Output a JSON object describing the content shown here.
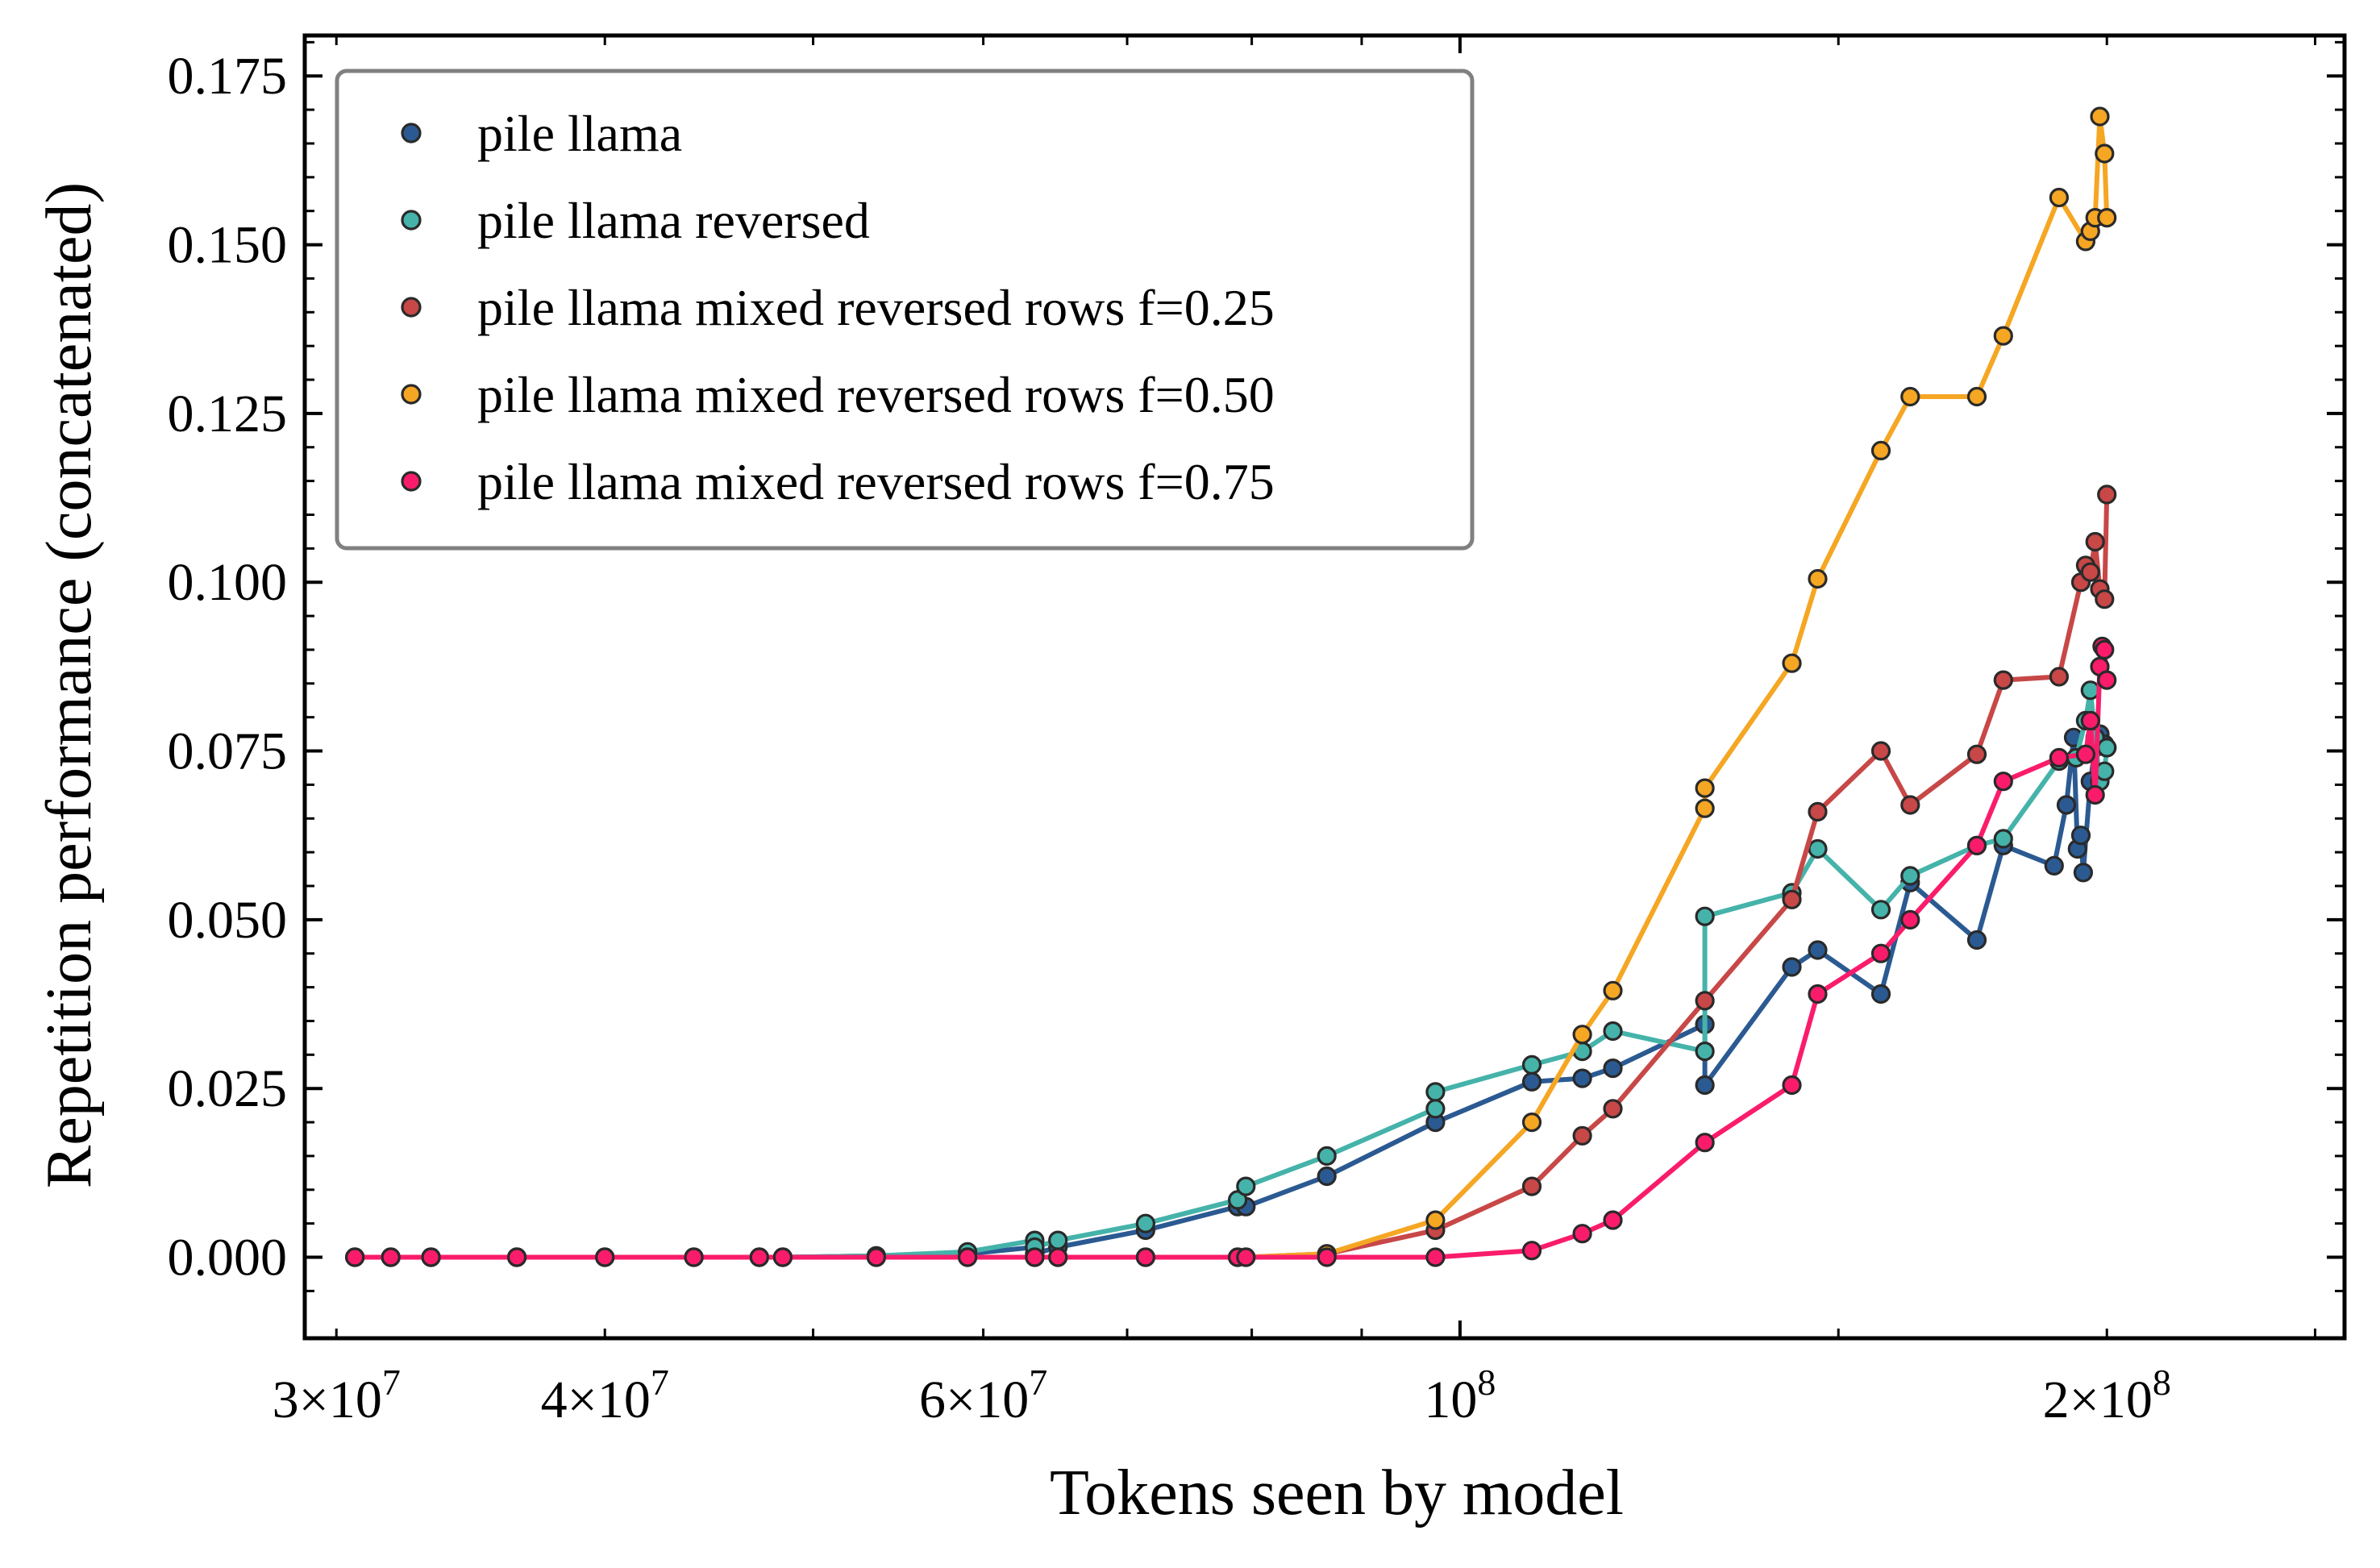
{
  "chart_data": {
    "type": "line",
    "xlabel": "Tokens seen by model",
    "ylabel": "Repetition performance (concatenated)",
    "xscale": "log",
    "xlim": [
      29000000,
      258000000
    ],
    "ylim": [
      -0.012,
      0.181
    ],
    "grid": false,
    "legend_position": "top-left",
    "x_ticks": [
      {
        "value": 30000000,
        "base": "3",
        "exp": "7"
      },
      {
        "value": 40000000,
        "base": "4",
        "exp": "7"
      },
      {
        "value": 60000000,
        "base": "6",
        "exp": "7"
      },
      {
        "value": 100000000,
        "base": "",
        "exp": "8"
      },
      {
        "value": 200000000,
        "base": "2",
        "exp": "8"
      }
    ],
    "y_ticks": [
      {
        "value": 0.0,
        "label": "0.000"
      },
      {
        "value": 0.025,
        "label": "0.025"
      },
      {
        "value": 0.05,
        "label": "0.050"
      },
      {
        "value": 0.075,
        "label": "0.075"
      },
      {
        "value": 0.1,
        "label": "0.100"
      },
      {
        "value": 0.125,
        "label": "0.125"
      },
      {
        "value": 0.15,
        "label": "0.150"
      },
      {
        "value": 0.175,
        "label": "0.175"
      }
    ],
    "series": [
      {
        "name": "pile llama",
        "color": "#2b5a92",
        "points": [
          [
            30600000,
            0
          ],
          [
            31800000,
            0
          ],
          [
            33200000,
            0
          ],
          [
            36400000,
            0
          ],
          [
            40000000,
            0
          ],
          [
            44000000,
            0
          ],
          [
            47200000,
            0
          ],
          [
            48400000,
            0
          ],
          [
            53500000,
            0.0002
          ],
          [
            59000000,
            0.0005
          ],
          [
            63400000,
            0.0015
          ],
          [
            63400000,
            0.0005
          ],
          [
            65000000,
            0.0015
          ],
          [
            71400000,
            0.004
          ],
          [
            78800000,
            0.0075
          ],
          [
            79500000,
            0.0075
          ],
          [
            86700000,
            0.012
          ],
          [
            97400000,
            0.02
          ],
          [
            108000000,
            0.026
          ],
          [
            114000000,
            0.0265
          ],
          [
            117800000,
            0.028
          ],
          [
            130000000,
            0.0345
          ],
          [
            130000000,
            0.0255
          ],
          [
            142700000,
            0.043
          ],
          [
            146700000,
            0.0455
          ],
          [
            157000000,
            0.039
          ],
          [
            162000000,
            0.0555
          ],
          [
            174000000,
            0.047
          ],
          [
            179000000,
            0.061
          ],
          [
            189000000,
            0.058
          ],
          [
            191500000,
            0.067
          ],
          [
            193000000,
            0.077
          ],
          [
            193800000,
            0.0605
          ],
          [
            194500000,
            0.0625
          ],
          [
            195000000,
            0.057
          ],
          [
            196500000,
            0.0705
          ],
          [
            197500000,
            0.0755
          ],
          [
            198500000,
            0.0775
          ],
          [
            199500000,
            0.076
          ],
          [
            200000000,
            0.0755
          ]
        ]
      },
      {
        "name": "pile llama reversed",
        "color": "#45b3aa",
        "points": [
          [
            30600000,
            0
          ],
          [
            31800000,
            0
          ],
          [
            33200000,
            0
          ],
          [
            36400000,
            0
          ],
          [
            40000000,
            0
          ],
          [
            44000000,
            0
          ],
          [
            47200000,
            0
          ],
          [
            48400000,
            0
          ],
          [
            53500000,
            0.0002
          ],
          [
            59000000,
            0.0008
          ],
          [
            63400000,
            0.0025
          ],
          [
            63400000,
            0.0015
          ],
          [
            65000000,
            0.0025
          ],
          [
            71400000,
            0.005
          ],
          [
            78800000,
            0.0085
          ],
          [
            79500000,
            0.0105
          ],
          [
            86700000,
            0.015
          ],
          [
            97400000,
            0.022
          ],
          [
            97400000,
            0.0245
          ],
          [
            108000000,
            0.0285
          ],
          [
            114000000,
            0.0305
          ],
          [
            117800000,
            0.0335
          ],
          [
            130000000,
            0.0305
          ],
          [
            130000000,
            0.0505
          ],
          [
            142700000,
            0.054
          ],
          [
            146700000,
            0.0605
          ],
          [
            157000000,
            0.0515
          ],
          [
            162000000,
            0.0565
          ],
          [
            174000000,
            0.061
          ],
          [
            179000000,
            0.062
          ],
          [
            190000000,
            0.0735
          ],
          [
            193500000,
            0.074
          ],
          [
            195500000,
            0.0795
          ],
          [
            196500000,
            0.084
          ],
          [
            197500000,
            0.077
          ],
          [
            198500000,
            0.0705
          ],
          [
            199500000,
            0.072
          ],
          [
            200000000,
            0.0755
          ]
        ]
      },
      {
        "name": "pile llama mixed reversed rows f=0.25",
        "color": "#c84747",
        "points": [
          [
            30600000,
            0
          ],
          [
            31800000,
            0
          ],
          [
            33200000,
            0
          ],
          [
            36400000,
            0
          ],
          [
            40000000,
            0
          ],
          [
            44000000,
            0
          ],
          [
            47200000,
            0
          ],
          [
            48400000,
            0
          ],
          [
            53500000,
            0
          ],
          [
            59000000,
            0
          ],
          [
            63400000,
            0
          ],
          [
            65000000,
            0
          ],
          [
            71400000,
            0
          ],
          [
            78800000,
            0
          ],
          [
            79500000,
            0
          ],
          [
            86700000,
            0.0005
          ],
          [
            97400000,
            0.004
          ],
          [
            108000000,
            0.0105
          ],
          [
            114000000,
            0.018
          ],
          [
            117800000,
            0.022
          ],
          [
            130000000,
            0.038
          ],
          [
            142700000,
            0.053
          ],
          [
            146700000,
            0.066
          ],
          [
            157000000,
            0.075
          ],
          [
            162000000,
            0.067
          ],
          [
            174000000,
            0.0745
          ],
          [
            179000000,
            0.0855
          ],
          [
            190000000,
            0.086
          ],
          [
            194500000,
            0.1
          ],
          [
            195500000,
            0.1025
          ],
          [
            196500000,
            0.1015
          ],
          [
            197500000,
            0.106
          ],
          [
            198500000,
            0.099
          ],
          [
            199500000,
            0.0975
          ],
          [
            200000000,
            0.113
          ]
        ]
      },
      {
        "name": "pile llama mixed reversed rows f=0.50",
        "color": "#f5a623",
        "points": [
          [
            30600000,
            0
          ],
          [
            31800000,
            0
          ],
          [
            33200000,
            0
          ],
          [
            36400000,
            0
          ],
          [
            40000000,
            0
          ],
          [
            44000000,
            0
          ],
          [
            47200000,
            0
          ],
          [
            48400000,
            0
          ],
          [
            53500000,
            0
          ],
          [
            59000000,
            0
          ],
          [
            63400000,
            0
          ],
          [
            65000000,
            0
          ],
          [
            71400000,
            0
          ],
          [
            78800000,
            0
          ],
          [
            79500000,
            0
          ],
          [
            86700000,
            0.0005
          ],
          [
            97400000,
            0.0055
          ],
          [
            108000000,
            0.02
          ],
          [
            114000000,
            0.033
          ],
          [
            117800000,
            0.0395
          ],
          [
            130000000,
            0.0665
          ],
          [
            130000000,
            0.0695
          ],
          [
            142700000,
            0.088
          ],
          [
            146700000,
            0.1005
          ],
          [
            157000000,
            0.1195
          ],
          [
            162000000,
            0.1275
          ],
          [
            174000000,
            0.1275
          ],
          [
            179000000,
            0.1365
          ],
          [
            190000000,
            0.157
          ],
          [
            195500000,
            0.1505
          ],
          [
            196500000,
            0.152
          ],
          [
            197500000,
            0.154
          ],
          [
            198500000,
            0.169
          ],
          [
            199500000,
            0.1635
          ],
          [
            200000000,
            0.154
          ]
        ]
      },
      {
        "name": "pile llama mixed reversed rows f=0.75",
        "color": "#fa1c6b",
        "points": [
          [
            30600000,
            0
          ],
          [
            31800000,
            0
          ],
          [
            33200000,
            0
          ],
          [
            36400000,
            0
          ],
          [
            40000000,
            0
          ],
          [
            44000000,
            0
          ],
          [
            47200000,
            0
          ],
          [
            48400000,
            0
          ],
          [
            53500000,
            0
          ],
          [
            59000000,
            0
          ],
          [
            63400000,
            0
          ],
          [
            65000000,
            0
          ],
          [
            71400000,
            0
          ],
          [
            78800000,
            0
          ],
          [
            79500000,
            0
          ],
          [
            86700000,
            0
          ],
          [
            97400000,
            0
          ],
          [
            108000000,
            0.001
          ],
          [
            114000000,
            0.0035
          ],
          [
            117800000,
            0.0055
          ],
          [
            130000000,
            0.017
          ],
          [
            142700000,
            0.0255
          ],
          [
            146700000,
            0.039
          ],
          [
            157000000,
            0.045
          ],
          [
            162000000,
            0.05
          ],
          [
            174000000,
            0.061
          ],
          [
            179000000,
            0.0705
          ],
          [
            190000000,
            0.074
          ],
          [
            195500000,
            0.0745
          ],
          [
            196500000,
            0.0795
          ],
          [
            197500000,
            0.0685
          ],
          [
            198500000,
            0.0875
          ],
          [
            199000000,
            0.0905
          ],
          [
            199500000,
            0.09
          ],
          [
            200000000,
            0.0855
          ]
        ]
      }
    ]
  }
}
